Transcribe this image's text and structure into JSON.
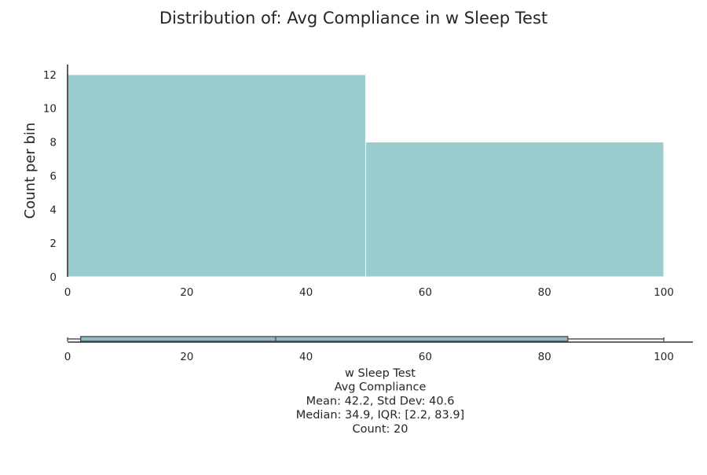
{
  "chart_data": [
    {
      "type": "bar",
      "chart_kind": "histogram",
      "title": "Distribution of: Avg Compliance in w Sleep Test",
      "xlabel": "",
      "ylabel": "Count per bin",
      "bins": [
        {
          "start": 0,
          "end": 50,
          "count": 12
        },
        {
          "start": 50,
          "end": 100,
          "count": 8
        }
      ],
      "xlim": [
        0,
        100
      ],
      "ylim": [
        0,
        12.6
      ],
      "xticks": [
        "0",
        "20",
        "40",
        "60",
        "80",
        "100"
      ],
      "yticks": [
        "0",
        "2",
        "4",
        "6",
        "8",
        "10",
        "12"
      ],
      "bar_color": "#9acccd",
      "grid": false
    },
    {
      "type": "box",
      "orientation": "horizontal",
      "whisker_low": 0,
      "q1": 2.2,
      "median": 34.9,
      "q3": 83.9,
      "whisker_high": 100,
      "xlim": [
        0,
        105
      ],
      "xticks": [
        "0",
        "20",
        "40",
        "60",
        "80",
        "100"
      ],
      "box_color": "#8fb9c9",
      "summary_lines": [
        "w Sleep Test",
        "Avg Compliance",
        "Mean: 42.2, Std Dev: 40.6",
        "Median: 34.9, IQR: [2.2, 83.9]",
        "Count: 20"
      ]
    }
  ]
}
